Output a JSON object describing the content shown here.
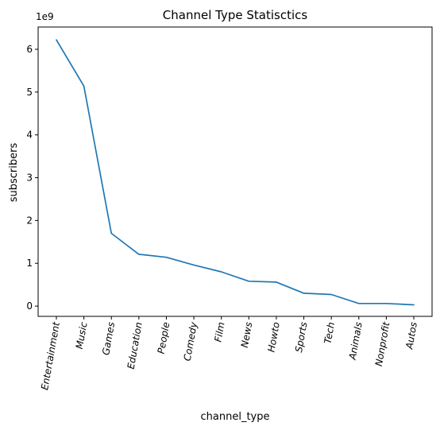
{
  "chart_data": {
    "type": "line",
    "title": "Channel Type Statisctics",
    "xlabel": "channel_type",
    "ylabel": "subscribers",
    "y_offset_label": "1e9",
    "categories": [
      "Entertainment",
      "Music",
      "Games",
      "Education",
      "People",
      "Comedy",
      "Film",
      "News",
      "Howto",
      "Sports",
      "Tech",
      "Animals",
      "Nonprofit",
      "Autos"
    ],
    "series": [
      {
        "name": "",
        "color": "#1f77b4",
        "values": [
          6.22,
          5.14,
          1.7,
          1.21,
          1.14,
          0.96,
          0.8,
          0.58,
          0.56,
          0.3,
          0.27,
          0.06,
          0.06,
          0.03
        ]
      }
    ],
    "ylim": [
      -0.24,
      6.52
    ],
    "yticks": [
      0,
      1,
      2,
      3,
      4,
      5,
      6
    ],
    "ytick_labels": [
      "0",
      "1",
      "2",
      "3",
      "4",
      "5",
      "6"
    ],
    "grid": false,
    "legend": "none"
  }
}
